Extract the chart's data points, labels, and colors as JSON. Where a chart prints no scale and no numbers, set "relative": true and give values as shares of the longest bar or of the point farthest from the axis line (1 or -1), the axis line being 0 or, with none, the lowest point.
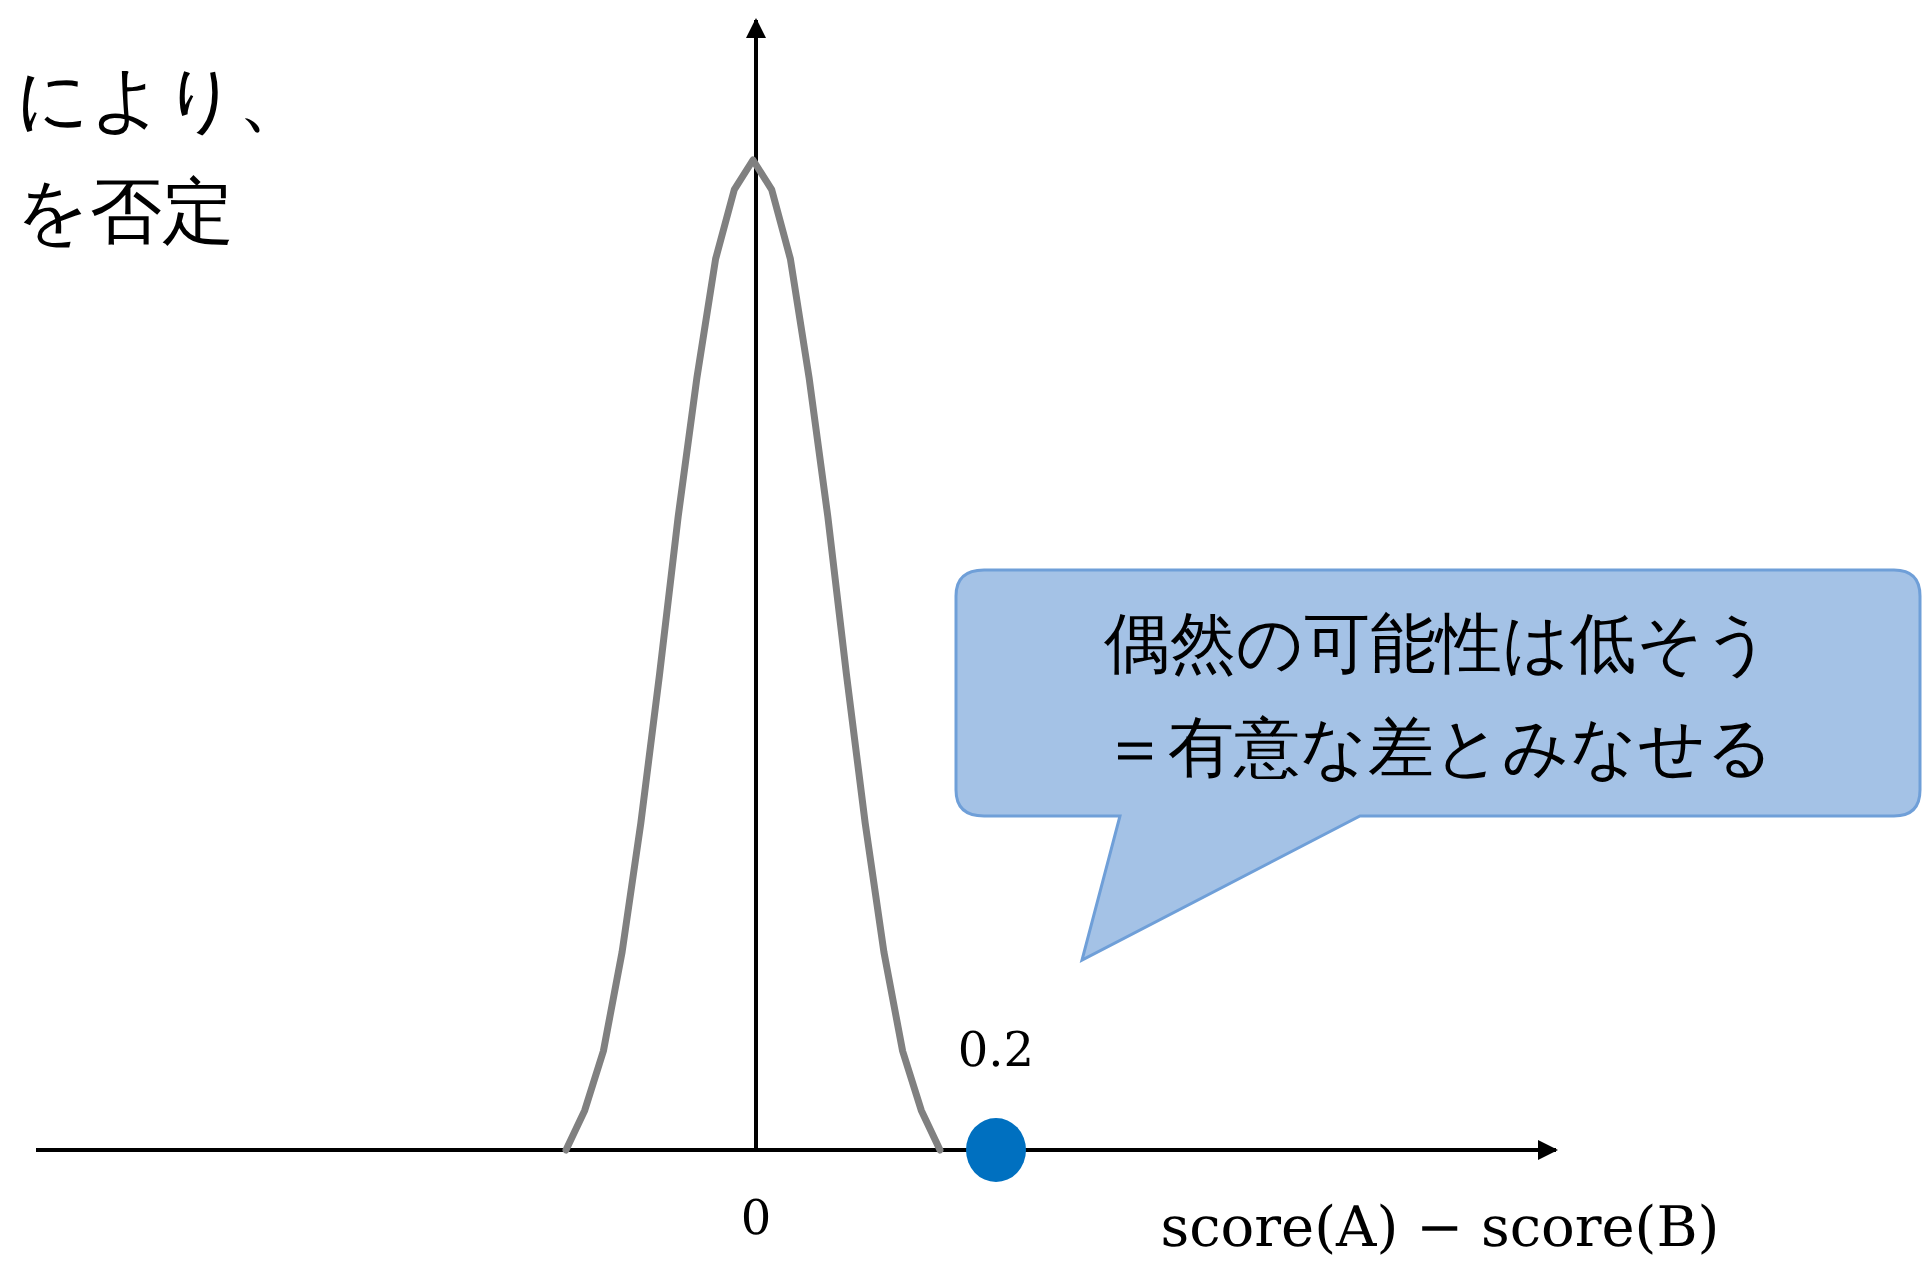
{
  "chart_data": {
    "type": "line",
    "relative": true,
    "xlabel": "score(A) − score(B)",
    "categories": [
      null,
      null,
      null,
      null,
      null,
      null,
      null,
      null,
      null,
      null,
      null,
      null,
      null,
      null,
      null,
      null,
      null,
      null,
      null,
      null,
      null
    ],
    "series": [
      {
        "type": "line",
        "color": "#808080",
        "values": [
          0,
          0.04,
          0.1,
          0.2,
          0.33,
          0.48,
          0.64,
          0.78,
          0.9,
          0.97,
          1,
          0.97,
          0.9,
          0.78,
          0.64,
          0.48,
          0.33,
          0.2,
          0.1,
          0.04,
          0
        ]
      }
    ],
    "annotations": [
      "により、",
      "を否定",
      "偶然の可能性は低そう＝有意な差とみなせる",
      "0",
      "0.2"
    ]
  }
}
